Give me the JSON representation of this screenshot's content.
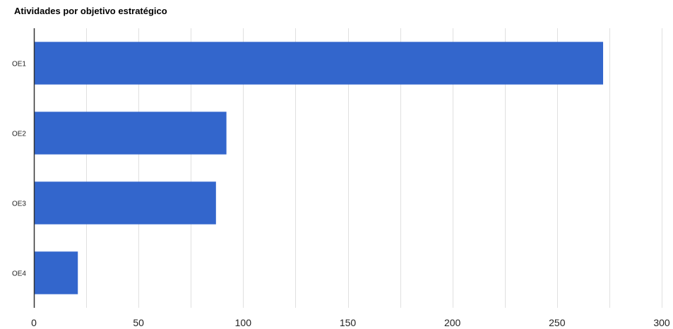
{
  "chart_data": {
    "type": "bar",
    "orientation": "horizontal",
    "title": "Atividades por objetivo estratégico",
    "categories": [
      "OE1",
      "OE2",
      "OE3",
      "OE4"
    ],
    "values": [
      272,
      92,
      87,
      21
    ],
    "xlim": [
      0,
      300
    ],
    "x_ticks": [
      0,
      50,
      100,
      150,
      200,
      250,
      300
    ],
    "grid": true,
    "legend": "none",
    "bar_color": "#3366cc",
    "gridline_color": "#e0e0e0",
    "axis_color": "#333333"
  }
}
